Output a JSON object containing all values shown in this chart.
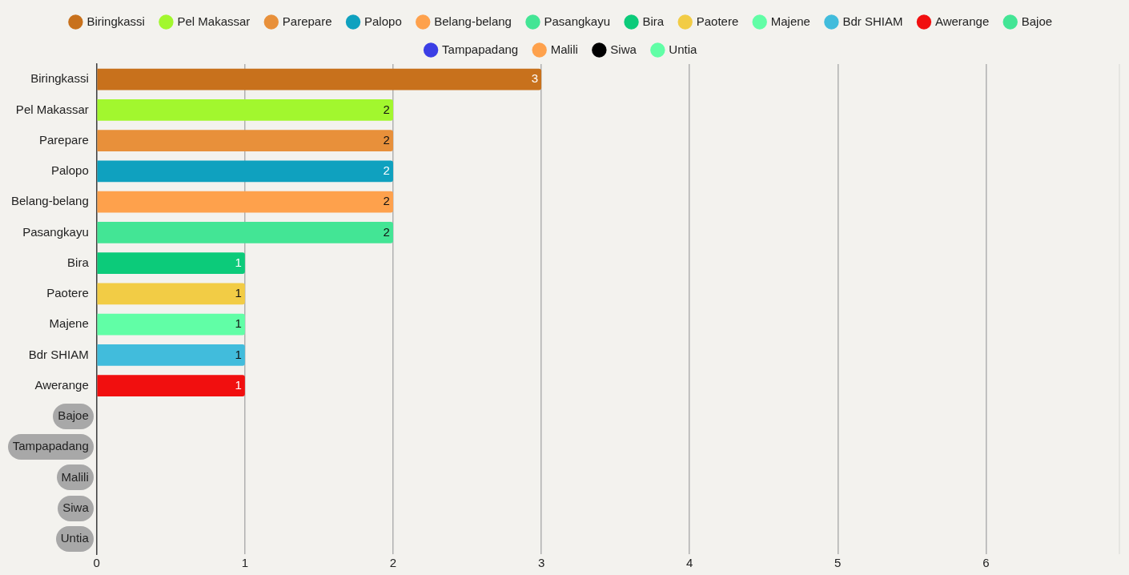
{
  "chart_data": {
    "type": "bar",
    "orientation": "horizontal",
    "stacked": true,
    "categories": [
      "Biringkassi",
      "Pel Makassar",
      "Parepare",
      "Palopo",
      "Belang-belang",
      "Pasangkayu",
      "Bira",
      "Paotere",
      "Majene",
      "Bdr SHIAM",
      "Awerange",
      "Bajoe",
      "Tampapadang",
      "Malili",
      "Siwa",
      "Untia"
    ],
    "series": [
      {
        "name": "Biringkassi",
        "color": "#c8711c",
        "values": [
          3,
          null,
          null,
          null,
          null,
          null,
          null,
          null,
          null,
          null,
          null,
          null,
          null,
          null,
          null,
          null
        ],
        "value_labels": [
          "3",
          null,
          null,
          null,
          null,
          null,
          null,
          null,
          null,
          null,
          null,
          null,
          null,
          null,
          null,
          null
        ]
      },
      {
        "name": "Pel Makassar",
        "color": "#a2f72e",
        "values": [
          null,
          2,
          null,
          null,
          null,
          null,
          null,
          null,
          null,
          null,
          null,
          null,
          null,
          null,
          null,
          null
        ],
        "value_labels": [
          null,
          "2",
          null,
          null,
          null,
          null,
          null,
          null,
          null,
          null,
          null,
          null,
          null,
          null,
          null,
          null
        ]
      },
      {
        "name": "Parepare",
        "color": "#e8903a",
        "values": [
          null,
          null,
          2,
          null,
          null,
          null,
          null,
          null,
          null,
          null,
          null,
          null,
          null,
          null,
          null,
          null
        ],
        "value_labels": [
          null,
          null,
          "2",
          null,
          null,
          null,
          null,
          null,
          null,
          null,
          null,
          null,
          null,
          null,
          null,
          null
        ]
      },
      {
        "name": "Palopo",
        "color": "#0fa1bf",
        "values": [
          null,
          null,
          null,
          2,
          null,
          null,
          null,
          null,
          null,
          null,
          null,
          null,
          null,
          null,
          null,
          null
        ],
        "value_labels": [
          null,
          null,
          null,
          "2",
          null,
          null,
          null,
          null,
          null,
          null,
          null,
          null,
          null,
          null,
          null,
          null
        ]
      },
      {
        "name": "Belang-belang",
        "color": "#fea14c",
        "values": [
          null,
          null,
          null,
          null,
          2,
          null,
          null,
          null,
          null,
          null,
          null,
          null,
          null,
          null,
          null,
          null
        ],
        "value_labels": [
          null,
          null,
          null,
          null,
          "2",
          null,
          null,
          null,
          null,
          null,
          null,
          null,
          null,
          null,
          null,
          null
        ]
      },
      {
        "name": "Pasangkayu",
        "color": "#43e595",
        "values": [
          null,
          null,
          null,
          null,
          null,
          2,
          null,
          null,
          null,
          null,
          null,
          null,
          null,
          null,
          null,
          null
        ],
        "value_labels": [
          null,
          null,
          null,
          null,
          null,
          "2",
          null,
          null,
          null,
          null,
          null,
          null,
          null,
          null,
          null,
          null
        ]
      },
      {
        "name": "Bira",
        "color": "#0ccb7a",
        "values": [
          null,
          null,
          null,
          null,
          null,
          null,
          1,
          null,
          null,
          null,
          null,
          null,
          null,
          null,
          null,
          null
        ],
        "value_labels": [
          null,
          null,
          null,
          null,
          null,
          null,
          "1",
          null,
          null,
          null,
          null,
          null,
          null,
          null,
          null,
          null
        ]
      },
      {
        "name": "Paotere",
        "color": "#f2cc45",
        "values": [
          null,
          null,
          null,
          null,
          null,
          null,
          null,
          1,
          null,
          null,
          null,
          null,
          null,
          null,
          null,
          null
        ],
        "value_labels": [
          null,
          null,
          null,
          null,
          null,
          null,
          null,
          "1",
          null,
          null,
          null,
          null,
          null,
          null,
          null,
          null
        ]
      },
      {
        "name": "Majene",
        "color": "#61fea6",
        "values": [
          null,
          null,
          null,
          null,
          null,
          null,
          null,
          null,
          1,
          null,
          null,
          null,
          null,
          null,
          null,
          null
        ],
        "value_labels": [
          null,
          null,
          null,
          null,
          null,
          null,
          null,
          null,
          "1",
          null,
          null,
          null,
          null,
          null,
          null,
          null
        ]
      },
      {
        "name": "Bdr SHIAM",
        "color": "#41bcdc",
        "values": [
          null,
          null,
          null,
          null,
          null,
          null,
          null,
          null,
          null,
          1,
          null,
          null,
          null,
          null,
          null,
          null
        ],
        "value_labels": [
          null,
          null,
          null,
          null,
          null,
          null,
          null,
          null,
          null,
          "1",
          null,
          null,
          null,
          null,
          null,
          null
        ]
      },
      {
        "name": "Awerange",
        "color": "#f10f0f",
        "values": [
          null,
          null,
          null,
          null,
          null,
          null,
          null,
          null,
          null,
          null,
          1,
          null,
          null,
          null,
          null,
          null
        ],
        "value_labels": [
          null,
          null,
          null,
          null,
          null,
          null,
          null,
          null,
          null,
          null,
          "1",
          null,
          null,
          null,
          null,
          null
        ]
      },
      {
        "name": "Bajoe",
        "color": "#43e595",
        "values": [
          null,
          null,
          null,
          null,
          null,
          null,
          null,
          null,
          null,
          null,
          null,
          0,
          null,
          null,
          null,
          null
        ]
      },
      {
        "name": "Tampapadang",
        "color": "#3b3ee5",
        "values": [
          null,
          null,
          null,
          null,
          null,
          null,
          null,
          null,
          null,
          null,
          null,
          null,
          0,
          null,
          null,
          null
        ]
      },
      {
        "name": "Malili",
        "color": "#fea14c",
        "values": [
          null,
          null,
          null,
          null,
          null,
          null,
          null,
          null,
          null,
          null,
          null,
          null,
          null,
          0,
          null,
          null
        ]
      },
      {
        "name": "Siwa",
        "color": "#000000",
        "values": [
          null,
          null,
          null,
          null,
          null,
          null,
          null,
          null,
          null,
          null,
          null,
          null,
          null,
          null,
          0,
          null
        ]
      },
      {
        "name": "Untia",
        "color": "#61fea6",
        "values": [
          null,
          null,
          null,
          null,
          null,
          null,
          null,
          null,
          null,
          null,
          null,
          null,
          null,
          null,
          null,
          0
        ]
      }
    ],
    "xlim": [
      0,
      6.9
    ],
    "xticks": [
      0,
      1,
      2,
      3,
      4,
      5,
      6
    ],
    "grid": "x",
    "legend": "top"
  }
}
